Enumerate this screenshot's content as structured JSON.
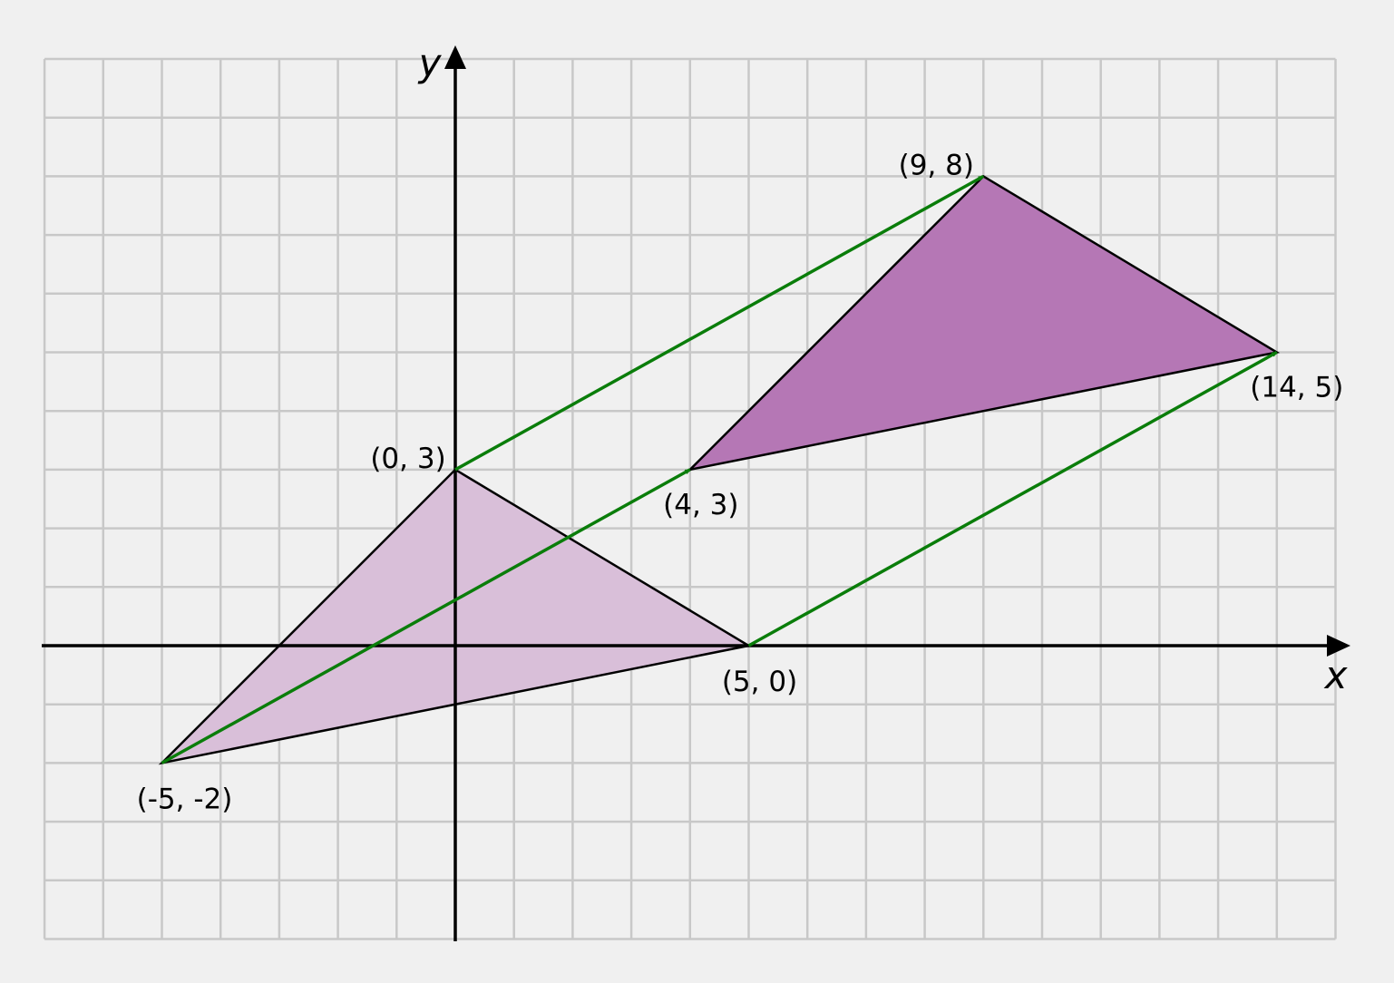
{
  "axes": {
    "x_label": "x",
    "y_label": "y"
  },
  "grid": {
    "x_min": -7,
    "x_max": 15,
    "y_min": -5,
    "y_max": 10
  },
  "colors": {
    "background": "#f0f0f0",
    "grid": "#c8c8c8",
    "original_fill": "#d9bfd9",
    "image_fill": "#b577b5",
    "edge": "#000000",
    "vector": "#0a7d0a"
  },
  "original_triangle": {
    "vertices": [
      {
        "x": -5,
        "y": -2,
        "label": "(-5, -2)"
      },
      {
        "x": 0,
        "y": 3,
        "label": "(0, 3)"
      },
      {
        "x": 5,
        "y": 0,
        "label": "(5, 0)"
      }
    ]
  },
  "translated_triangle": {
    "vertices": [
      {
        "x": 4,
        "y": 3,
        "label": "(4, 3)"
      },
      {
        "x": 9,
        "y": 8,
        "label": "(9, 8)"
      },
      {
        "x": 14,
        "y": 5,
        "label": "(14, 5)"
      }
    ]
  },
  "translation_vectors": [
    {
      "from": [
        -5,
        -2
      ],
      "to": [
        4,
        3
      ]
    },
    {
      "from": [
        0,
        3
      ],
      "to": [
        9,
        8
      ]
    },
    {
      "from": [
        5,
        0
      ],
      "to": [
        14,
        5
      ]
    }
  ]
}
